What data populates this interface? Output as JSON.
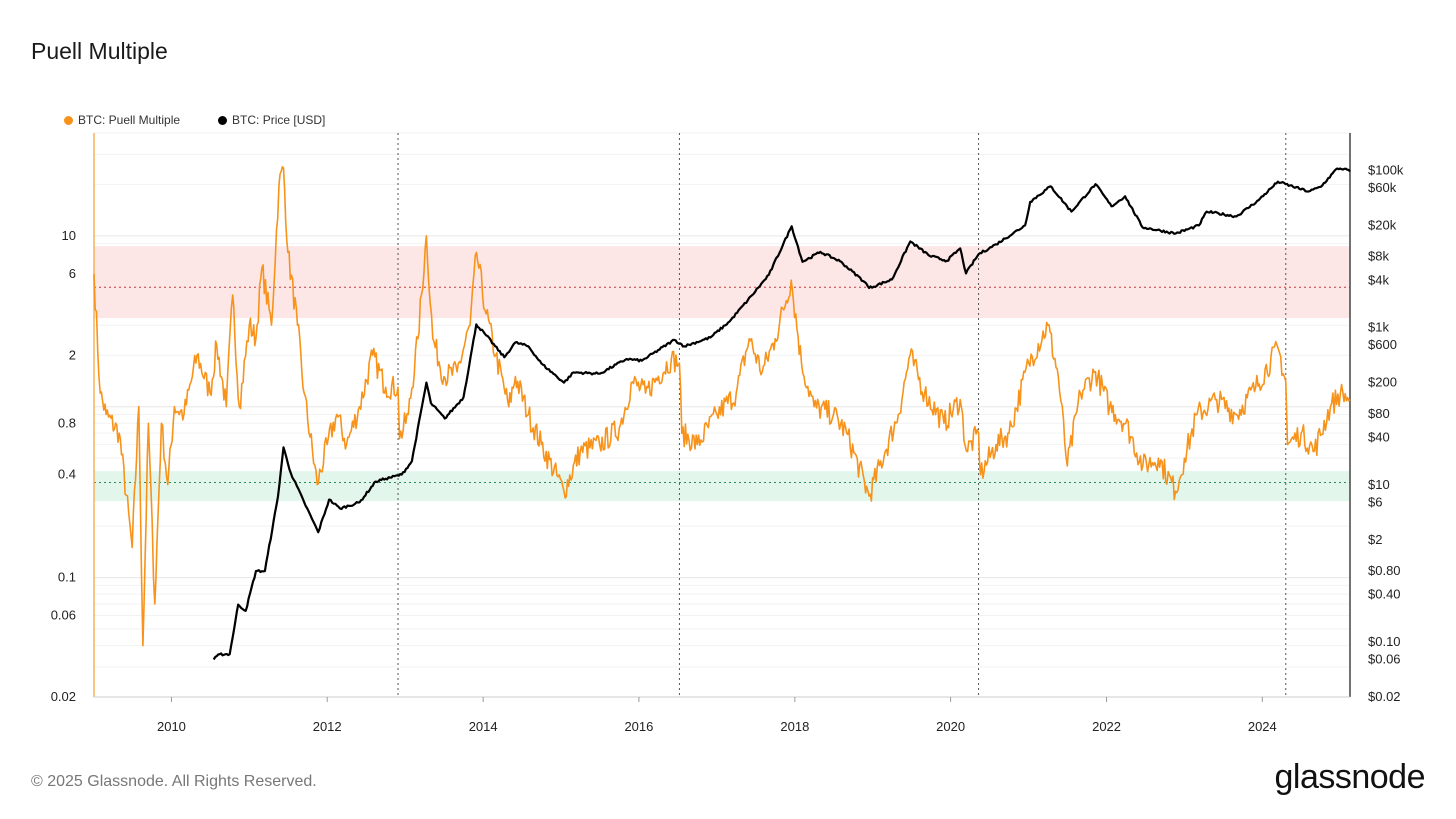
{
  "title": "Puell Multiple",
  "footer": "© 2025 Glassnode. All Rights Reserved.",
  "logo": "glassnode",
  "legend": [
    {
      "label": "BTC: Puell Multiple",
      "color": "#f7931a"
    },
    {
      "label": "BTC: Price [USD]",
      "color": "#000000"
    }
  ],
  "chart_data": {
    "type": "line",
    "title": "Puell Multiple",
    "x_range": [
      "2009-01-03",
      "2025-02-15"
    ],
    "x_ticks": [
      {
        "label": "2010",
        "year": 2010
      },
      {
        "label": "2012",
        "year": 2012
      },
      {
        "label": "2014",
        "year": 2014
      },
      {
        "label": "2016",
        "year": 2016
      },
      {
        "label": "2018",
        "year": 2018
      },
      {
        "label": "2020",
        "year": 2020
      },
      {
        "label": "2022",
        "year": 2022
      },
      {
        "label": "2024",
        "year": 2024
      }
    ],
    "left_axis": {
      "scale": "log",
      "range": [
        0.02,
        40
      ],
      "ticks": [
        {
          "label": "10",
          "value": 10
        },
        {
          "label": "6",
          "value": 6
        },
        {
          "label": "2",
          "value": 2
        },
        {
          "label": "0.8",
          "value": 0.8
        },
        {
          "label": "0.4",
          "value": 0.4
        },
        {
          "label": "0.1",
          "value": 0.1
        },
        {
          "label": "0.06",
          "value": 0.06
        },
        {
          "label": "0.02",
          "value": 0.02
        }
      ]
    },
    "right_axis": {
      "scale": "log",
      "range": [
        0.02,
        300000
      ],
      "ticks": [
        {
          "label": "$100k",
          "value": 100000
        },
        {
          "label": "$60k",
          "value": 60000
        },
        {
          "label": "$20k",
          "value": 20000
        },
        {
          "label": "$8k",
          "value": 8000
        },
        {
          "label": "$4k",
          "value": 4000
        },
        {
          "label": "$1k",
          "value": 1000
        },
        {
          "label": "$600",
          "value": 600
        },
        {
          "label": "$200",
          "value": 200
        },
        {
          "label": "$80",
          "value": 80
        },
        {
          "label": "$40",
          "value": 40
        },
        {
          "label": "$10",
          "value": 10
        },
        {
          "label": "$6",
          "value": 6
        },
        {
          "label": "$2",
          "value": 2
        },
        {
          "label": "$0.80",
          "value": 0.8
        },
        {
          "label": "$0.40",
          "value": 0.4
        },
        {
          "label": "$0.10",
          "value": 0.1
        },
        {
          "label": "$0.06",
          "value": 0.06
        },
        {
          "label": "$0.02",
          "value": 0.02
        }
      ]
    },
    "bands": [
      {
        "from": 3.3,
        "to": 8.7,
        "color": "#fde3e3",
        "line": 5.0,
        "line_color": "#c23b3b"
      },
      {
        "from": 0.28,
        "to": 0.42,
        "color": "#e0f5ea",
        "line": 0.36,
        "line_color": "#2e8b57"
      }
    ],
    "halving_dates": [
      "2012-11-28",
      "2016-07-09",
      "2020-05-11",
      "2024-04-20"
    ],
    "grid": true,
    "legend_position": "top-left",
    "series": [
      {
        "name": "BTC: Puell Multiple",
        "axis": "left",
        "color": "#f7931a",
        "points": [
          [
            "2009-01-03",
            6.0
          ],
          [
            "2009-02-01",
            1.2
          ],
          [
            "2009-03-01",
            0.9
          ],
          [
            "2009-05-01",
            0.7
          ],
          [
            "2009-07-01",
            0.15
          ],
          [
            "2009-08-01",
            1.0
          ],
          [
            "2009-08-20",
            0.04
          ],
          [
            "2009-09-15",
            0.8
          ],
          [
            "2009-10-15",
            0.07
          ],
          [
            "2009-11-15",
            0.8
          ],
          [
            "2009-12-15",
            0.35
          ],
          [
            "2010-01-15",
            1.0
          ],
          [
            "2010-03-01",
            0.9
          ],
          [
            "2010-05-01",
            2.0
          ],
          [
            "2010-07-01",
            1.2
          ],
          [
            "2010-08-01",
            2.3
          ],
          [
            "2010-09-15",
            1.0
          ],
          [
            "2010-10-15",
            4.5
          ],
          [
            "2010-11-15",
            1.0
          ],
          [
            "2011-01-01",
            3.0
          ],
          [
            "2011-02-01",
            2.5
          ],
          [
            "2011-03-01",
            6.5
          ],
          [
            "2011-04-15",
            3.0
          ],
          [
            "2011-05-20",
            20.0
          ],
          [
            "2011-06-10",
            25.0
          ],
          [
            "2011-07-01",
            8.0
          ],
          [
            "2011-08-15",
            3.0
          ],
          [
            "2011-09-15",
            1.2
          ],
          [
            "2011-11-15",
            0.35
          ],
          [
            "2012-01-01",
            0.6
          ],
          [
            "2012-02-15",
            0.9
          ],
          [
            "2012-04-01",
            0.6
          ],
          [
            "2012-06-01",
            1.0
          ],
          [
            "2012-08-01",
            2.0
          ],
          [
            "2012-10-01",
            1.3
          ],
          [
            "2012-11-28",
            1.3
          ],
          [
            "2012-12-05",
            0.65
          ],
          [
            "2013-01-15",
            0.9
          ],
          [
            "2013-03-01",
            2.5
          ],
          [
            "2013-04-10",
            10.0
          ],
          [
            "2013-05-10",
            2.5
          ],
          [
            "2013-07-01",
            1.5
          ],
          [
            "2013-09-01",
            1.6
          ],
          [
            "2013-11-01",
            3.0
          ],
          [
            "2013-12-01",
            8.0
          ],
          [
            "2014-01-15",
            3.5
          ],
          [
            "2014-03-01",
            2.0
          ],
          [
            "2014-05-01",
            1.0
          ],
          [
            "2014-06-01",
            1.5
          ],
          [
            "2014-08-01",
            0.9
          ],
          [
            "2014-10-01",
            0.6
          ],
          [
            "2015-01-15",
            0.32
          ],
          [
            "2015-04-01",
            0.55
          ],
          [
            "2015-07-01",
            0.6
          ],
          [
            "2015-10-01",
            0.75
          ],
          [
            "2015-12-01",
            1.4
          ],
          [
            "2016-02-01",
            1.2
          ],
          [
            "2016-06-01",
            1.9
          ],
          [
            "2016-07-09",
            1.8
          ],
          [
            "2016-07-20",
            0.7
          ],
          [
            "2016-10-01",
            0.6
          ],
          [
            "2017-01-01",
            0.9
          ],
          [
            "2017-04-01",
            1.2
          ],
          [
            "2017-06-01",
            2.5
          ],
          [
            "2017-08-01",
            1.6
          ],
          [
            "2017-10-01",
            2.5
          ],
          [
            "2017-12-15",
            5.5
          ],
          [
            "2018-02-01",
            1.8
          ],
          [
            "2018-04-01",
            1.0
          ],
          [
            "2018-07-01",
            0.9
          ],
          [
            "2018-09-01",
            0.7
          ],
          [
            "2018-12-15",
            0.3
          ],
          [
            "2019-03-01",
            0.55
          ],
          [
            "2019-05-01",
            0.9
          ],
          [
            "2019-06-25",
            2.0
          ],
          [
            "2019-09-01",
            1.2
          ],
          [
            "2019-12-01",
            0.8
          ],
          [
            "2020-02-15",
            1.1
          ],
          [
            "2020-03-15",
            0.55
          ],
          [
            "2020-05-11",
            0.7
          ],
          [
            "2020-05-20",
            0.4
          ],
          [
            "2020-08-01",
            0.6
          ],
          [
            "2020-10-01",
            0.7
          ],
          [
            "2021-01-01",
            1.8
          ],
          [
            "2021-04-01",
            3.0
          ],
          [
            "2021-05-20",
            1.5
          ],
          [
            "2021-07-01",
            0.45
          ],
          [
            "2021-09-01",
            1.2
          ],
          [
            "2021-11-10",
            1.6
          ],
          [
            "2022-01-15",
            1.0
          ],
          [
            "2022-04-01",
            0.8
          ],
          [
            "2022-06-20",
            0.45
          ],
          [
            "2022-09-01",
            0.5
          ],
          [
            "2022-11-20",
            0.32
          ],
          [
            "2023-01-01",
            0.5
          ],
          [
            "2023-03-01",
            0.9
          ],
          [
            "2023-06-01",
            1.1
          ],
          [
            "2023-09-01",
            0.9
          ],
          [
            "2023-12-01",
            1.3
          ],
          [
            "2024-03-15",
            2.2
          ],
          [
            "2024-04-20",
            1.4
          ],
          [
            "2024-04-28",
            0.6
          ],
          [
            "2024-07-01",
            0.7
          ],
          [
            "2024-09-01",
            0.55
          ],
          [
            "2024-11-15",
            1.0
          ],
          [
            "2025-01-01",
            1.2
          ],
          [
            "2025-02-15",
            1.1
          ]
        ]
      },
      {
        "name": "BTC: Price [USD]",
        "axis": "right",
        "color": "#000000",
        "points": [
          [
            "2010-07-18",
            0.06
          ],
          [
            "2010-08-15",
            0.07
          ],
          [
            "2010-10-01",
            0.07
          ],
          [
            "2010-11-10",
            0.3
          ],
          [
            "2010-12-15",
            0.25
          ],
          [
            "2011-02-01",
            0.8
          ],
          [
            "2011-03-15",
            0.8
          ],
          [
            "2011-05-15",
            7.0
          ],
          [
            "2011-06-10",
            30.0
          ],
          [
            "2011-07-15",
            14.0
          ],
          [
            "2011-09-15",
            6.0
          ],
          [
            "2011-11-20",
            2.5
          ],
          [
            "2012-01-10",
            6.5
          ],
          [
            "2012-03-01",
            5.0
          ],
          [
            "2012-06-01",
            6.0
          ],
          [
            "2012-08-15",
            11.0
          ],
          [
            "2012-10-01",
            12.0
          ],
          [
            "2012-12-15",
            13.5
          ],
          [
            "2013-02-01",
            20.0
          ],
          [
            "2013-04-10",
            200.0
          ],
          [
            "2013-05-01",
            110.0
          ],
          [
            "2013-07-05",
            70.0
          ],
          [
            "2013-10-01",
            130.0
          ],
          [
            "2013-11-30",
            1100.0
          ],
          [
            "2014-01-15",
            800.0
          ],
          [
            "2014-04-10",
            420.0
          ],
          [
            "2014-06-01",
            650.0
          ],
          [
            "2014-08-01",
            580.0
          ],
          [
            "2014-10-01",
            350.0
          ],
          [
            "2015-01-15",
            200.0
          ],
          [
            "2015-03-01",
            270.0
          ],
          [
            "2015-07-01",
            260.0
          ],
          [
            "2015-11-05",
            400.0
          ],
          [
            "2016-01-15",
            380.0
          ],
          [
            "2016-06-15",
            700.0
          ],
          [
            "2016-08-01",
            580.0
          ],
          [
            "2016-12-01",
            750.0
          ],
          [
            "2017-03-01",
            1200.0
          ],
          [
            "2017-06-15",
            2600.0
          ],
          [
            "2017-09-01",
            4700.0
          ],
          [
            "2017-12-17",
            19500.0
          ],
          [
            "2018-02-06",
            6900.0
          ],
          [
            "2018-05-01",
            9200.0
          ],
          [
            "2018-08-01",
            7000.0
          ],
          [
            "2018-11-25",
            3800.0
          ],
          [
            "2018-12-15",
            3200.0
          ],
          [
            "2019-04-01",
            4100.0
          ],
          [
            "2019-06-26",
            12500.0
          ],
          [
            "2019-09-25",
            8200.0
          ],
          [
            "2019-12-15",
            7100.0
          ],
          [
            "2020-02-15",
            10200.0
          ],
          [
            "2020-03-13",
            4900.0
          ],
          [
            "2020-05-11",
            8600.0
          ],
          [
            "2020-08-01",
            11500.0
          ],
          [
            "2020-12-15",
            20000.0
          ],
          [
            "2021-01-08",
            40000.0
          ],
          [
            "2021-04-14",
            63000.0
          ],
          [
            "2021-07-20",
            30000.0
          ],
          [
            "2021-11-10",
            67000.0
          ],
          [
            "2022-01-24",
            35000.0
          ],
          [
            "2022-03-29",
            47000.0
          ],
          [
            "2022-06-18",
            19000.0
          ],
          [
            "2022-11-21",
            15800.0
          ],
          [
            "2023-03-10",
            20000.0
          ],
          [
            "2023-04-15",
            30000.0
          ],
          [
            "2023-09-01",
            26000.0
          ],
          [
            "2023-12-15",
            42000.0
          ],
          [
            "2024-03-14",
            72000.0
          ],
          [
            "2024-08-05",
            54000.0
          ],
          [
            "2024-10-01",
            62000.0
          ],
          [
            "2024-12-17",
            106000.0
          ],
          [
            "2025-01-20",
            105000.0
          ],
          [
            "2025-02-15",
            97000.0
          ]
        ]
      }
    ]
  }
}
